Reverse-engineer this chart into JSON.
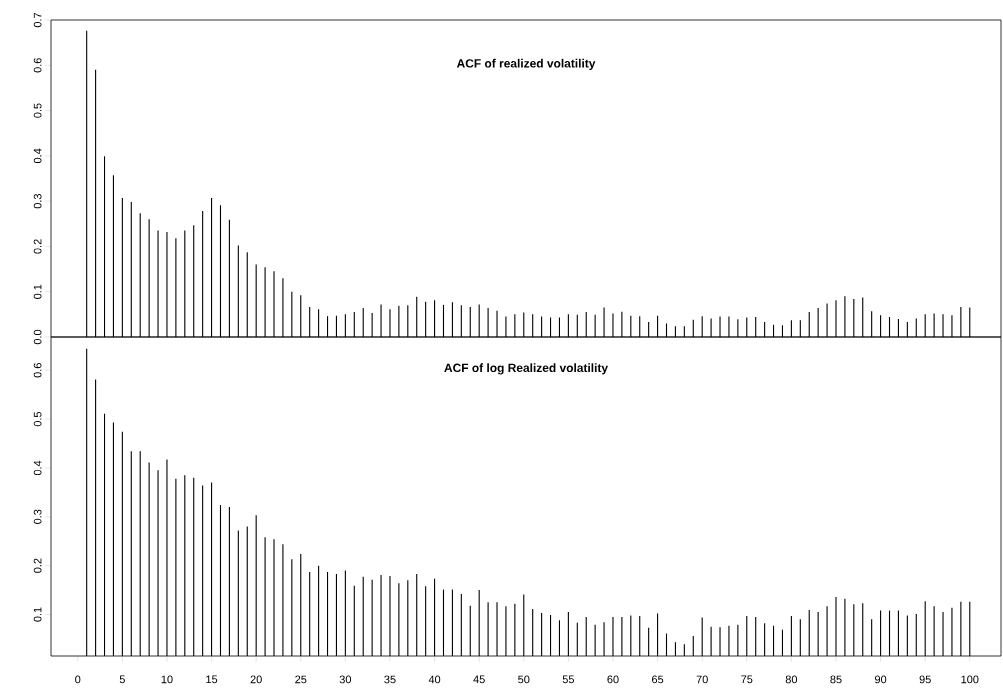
{
  "chart_data": [
    {
      "type": "bar",
      "title": "ACF of realized volatility",
      "color": "#000000",
      "tick_labels": "y",
      "x": [
        1,
        2,
        3,
        4,
        5,
        6,
        7,
        8,
        9,
        10,
        11,
        12,
        13,
        14,
        15,
        16,
        17,
        18,
        19,
        20,
        21,
        22,
        23,
        24,
        25,
        26,
        27,
        28,
        29,
        30,
        31,
        32,
        33,
        34,
        35,
        36,
        37,
        38,
        39,
        40,
        41,
        42,
        43,
        44,
        45,
        46,
        47,
        48,
        49,
        50,
        51,
        52,
        53,
        54,
        55,
        56,
        57,
        58,
        59,
        60,
        61,
        62,
        63,
        64,
        65,
        66,
        67,
        68,
        69,
        70,
        71,
        72,
        73,
        74,
        75,
        76,
        77,
        78,
        79,
        80,
        81,
        82,
        83,
        84,
        85,
        86,
        87,
        88,
        89,
        90,
        91,
        92,
        93,
        94,
        95,
        96,
        97,
        98,
        99,
        100
      ],
      "values": [
        0.676,
        0.59,
        0.399,
        0.357,
        0.307,
        0.298,
        0.273,
        0.26,
        0.235,
        0.232,
        0.218,
        0.235,
        0.247,
        0.278,
        0.307,
        0.291,
        0.259,
        0.202,
        0.187,
        0.16,
        0.154,
        0.145,
        0.13,
        0.1,
        0.092,
        0.066,
        0.061,
        0.046,
        0.047,
        0.05,
        0.055,
        0.064,
        0.053,
        0.072,
        0.061,
        0.069,
        0.07,
        0.089,
        0.078,
        0.081,
        0.071,
        0.077,
        0.07,
        0.066,
        0.072,
        0.064,
        0.058,
        0.045,
        0.05,
        0.054,
        0.05,
        0.045,
        0.043,
        0.043,
        0.05,
        0.049,
        0.055,
        0.049,
        0.065,
        0.052,
        0.056,
        0.047,
        0.046,
        0.033,
        0.047,
        0.03,
        0.024,
        0.024,
        0.038,
        0.046,
        0.041,
        0.045,
        0.045,
        0.039,
        0.043,
        0.044,
        0.033,
        0.027,
        0.026,
        0.037,
        0.037,
        0.055,
        0.064,
        0.074,
        0.081,
        0.09,
        0.084,
        0.087,
        0.057,
        0.048,
        0.044,
        0.04,
        0.033,
        0.041,
        0.05,
        0.052,
        0.05,
        0.048,
        0.066,
        0.065
      ],
      "xlim": [
        -3,
        103.5
      ],
      "ylim": [
        0,
        0.7
      ],
      "yticks": [
        {
          "value": 0,
          "label": "0.0"
        },
        0.1,
        0.2,
        0.3,
        0.4,
        0.5,
        0.6,
        0.7
      ]
    },
    {
      "type": "bar",
      "title": "ACF of log Realized volatility",
      "color": "#000000",
      "x": [
        1,
        2,
        3,
        4,
        5,
        6,
        7,
        8,
        9,
        10,
        11,
        12,
        13,
        14,
        15,
        16,
        17,
        18,
        19,
        20,
        21,
        22,
        23,
        24,
        25,
        26,
        27,
        28,
        29,
        30,
        31,
        32,
        33,
        34,
        35,
        36,
        37,
        38,
        39,
        40,
        41,
        42,
        43,
        44,
        45,
        46,
        47,
        48,
        49,
        50,
        51,
        52,
        53,
        54,
        55,
        56,
        57,
        58,
        59,
        60,
        61,
        62,
        63,
        64,
        65,
        66,
        67,
        68,
        69,
        70,
        71,
        72,
        73,
        74,
        75,
        76,
        77,
        78,
        79,
        80,
        81,
        82,
        83,
        84,
        85,
        86,
        87,
        88,
        89,
        90,
        91,
        92,
        93,
        94,
        95,
        96,
        97,
        98,
        99,
        100
      ],
      "values": [
        0.644,
        0.581,
        0.511,
        0.493,
        0.474,
        0.434,
        0.434,
        0.411,
        0.395,
        0.417,
        0.378,
        0.385,
        0.38,
        0.364,
        0.37,
        0.324,
        0.32,
        0.272,
        0.28,
        0.303,
        0.258,
        0.254,
        0.244,
        0.213,
        0.224,
        0.187,
        0.2,
        0.187,
        0.183,
        0.19,
        0.159,
        0.177,
        0.171,
        0.181,
        0.179,
        0.164,
        0.17,
        0.183,
        0.158,
        0.173,
        0.151,
        0.151,
        0.142,
        0.118,
        0.15,
        0.125,
        0.125,
        0.117,
        0.122,
        0.141,
        0.111,
        0.103,
        0.099,
        0.088,
        0.105,
        0.083,
        0.095,
        0.079,
        0.084,
        0.095,
        0.095,
        0.098,
        0.097,
        0.073,
        0.102,
        0.061,
        0.043,
        0.039,
        0.056,
        0.094,
        0.075,
        0.074,
        0.077,
        0.079,
        0.097,
        0.095,
        0.082,
        0.077,
        0.069,
        0.097,
        0.09,
        0.109,
        0.105,
        0.117,
        0.136,
        0.132,
        0.121,
        0.123,
        0.09,
        0.108,
        0.108,
        0.108,
        0.098,
        0.101,
        0.127,
        0.117,
        0.105,
        0.114,
        0.126,
        0.126
      ],
      "xlim": [
        -3,
        103.5
      ],
      "ylim": [
        0.015,
        0.668
      ],
      "xticks": [
        0,
        5,
        10,
        15,
        20,
        25,
        30,
        35,
        40,
        45,
        50,
        55,
        60,
        65,
        70,
        75,
        80,
        85,
        90,
        95,
        100
      ],
      "yticks": [
        0.1,
        0.2,
        0.3,
        0.4,
        0.5,
        0.6
      ]
    }
  ]
}
